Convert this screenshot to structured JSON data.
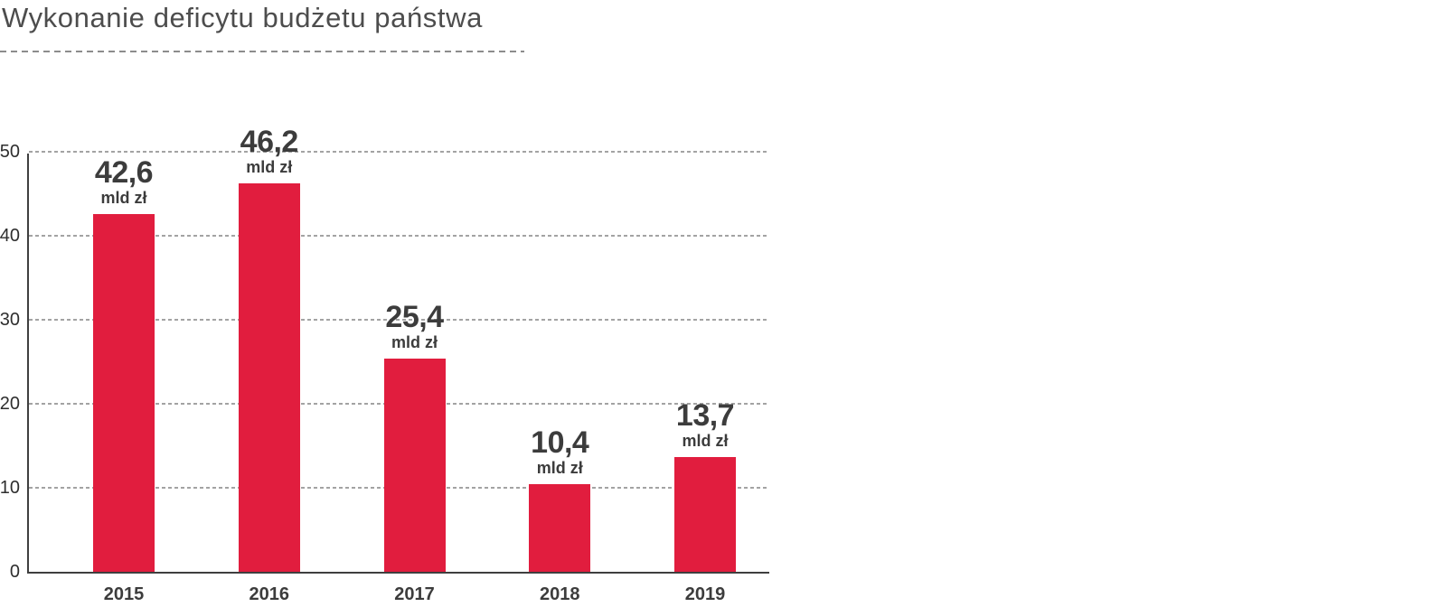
{
  "chart_data": {
    "type": "bar",
    "title": "Wykonanie deficytu budżetu państwa",
    "categories": [
      "2015",
      "2016",
      "2017",
      "2018",
      "2019"
    ],
    "values": [
      42.6,
      46.2,
      25.4,
      10.4,
      13.7
    ],
    "value_labels": [
      "42,6",
      "46,2",
      "25,4",
      "10,4",
      "13,7"
    ],
    "unit_label": "mld zł",
    "xlabel": "",
    "ylabel": "",
    "ylim": [
      0,
      50
    ],
    "yticks": [
      0,
      10,
      20,
      30,
      40,
      50
    ],
    "grid": "horizontal-dashed",
    "legend": "none",
    "colors": {
      "bar": "#e11d3e",
      "value_text": "#3c3c3c",
      "title_text": "#4d4d4d",
      "tick_text": "#2e2e2e",
      "gridline": "#a3a3a3",
      "axis": "#3f3f3f",
      "background": "#ffffff"
    }
  }
}
